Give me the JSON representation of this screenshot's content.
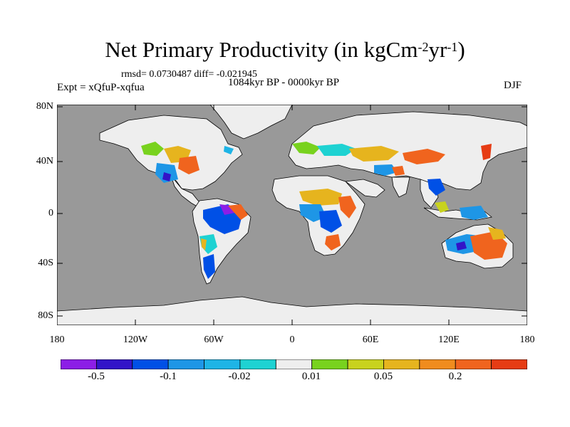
{
  "header": {
    "title": "Net Primary Productivity (in kgCm",
    "title_sup1": "-2",
    "title_unit": "yr",
    "title_sup2": "-1",
    "title_close": ")",
    "rmsd_line": "rmsd= 0.0730487 diff= -0.021945",
    "experiment": "Expt = xQfuP-xqfua",
    "period": "1084kyr BP - 0000kyr BP",
    "season": "DJF"
  },
  "map": {
    "lat_labels": [
      "80N",
      "40N",
      "0",
      "40S",
      "80S"
    ],
    "lon_labels": [
      "180",
      "120W",
      "60W",
      "0",
      "60E",
      "120E",
      "180"
    ],
    "ocean_color": "#999999",
    "land_color": "#eeeeee"
  },
  "colorbar": {
    "colors": [
      "#8c1ee6",
      "#3214c8",
      "#0050e6",
      "#1e96e6",
      "#1eb4e6",
      "#1ed2d2",
      "#eeeeee",
      "#78d21e",
      "#c8d21e",
      "#e6b41e",
      "#f08c1e",
      "#f0641e",
      "#e63c14"
    ],
    "labels": [
      "-0.5",
      "-0.1",
      "-0.02",
      "0.01",
      "0.05",
      "0.2"
    ]
  }
}
